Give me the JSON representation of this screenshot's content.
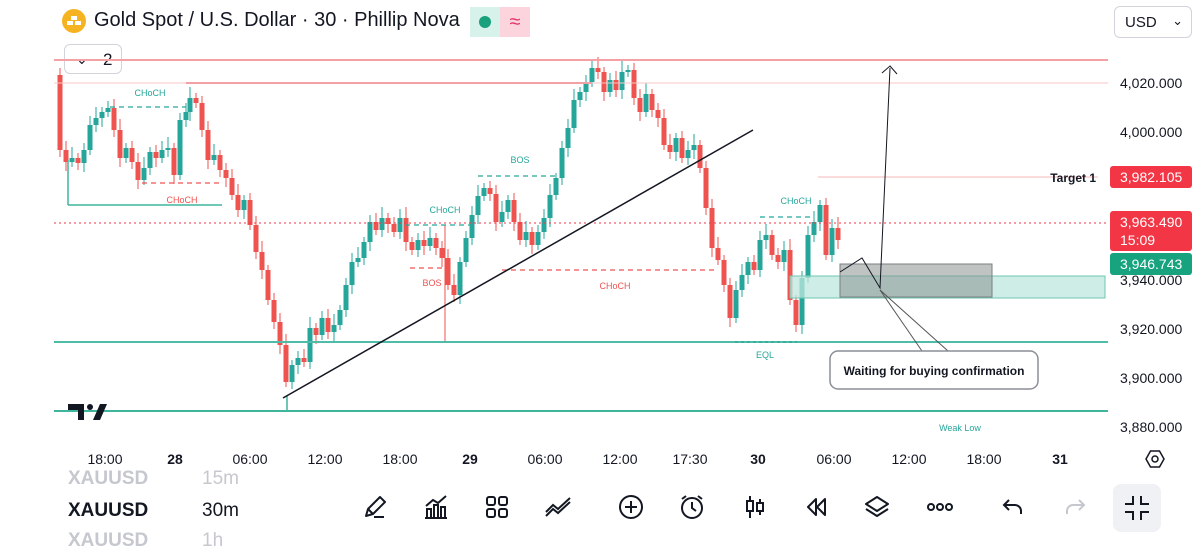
{
  "header": {
    "title": "Gold Spot / U.S. Dollar · 30 · Phillip Nova",
    "currency": "USD",
    "indicator_count": "2",
    "logo_icon": "gold-bars-icon",
    "live_icon": "live-dot-icon",
    "delay_icon": "approx-icon"
  },
  "price_axis": {
    "ticks": [
      "4,020.000",
      "4,000.000",
      "3,940.000",
      "3,920.000",
      "3,900.000",
      "3,880.000"
    ],
    "target_label": "Target 1",
    "target_value": "3,982.105",
    "last_price": "3,963.490",
    "countdown": "15:09",
    "level_value": "3,946.743"
  },
  "time_axis": {
    "ticks": [
      "18:00",
      "28",
      "06:00",
      "12:00",
      "18:00",
      "29",
      "06:00",
      "12:00",
      "17:30",
      "30",
      "06:00",
      "12:00",
      "18:00",
      "31"
    ],
    "settings_icon": "gear-icon"
  },
  "annotations": {
    "choch": "CHoCH",
    "bos": "BOS",
    "eql": "EQL",
    "weak_low": "Weak Low",
    "callout": "Waiting for buying confirmation"
  },
  "watermark_icon": "tradingview-logo",
  "colors": {
    "bull": "#26a69a",
    "bear": "#ef5350",
    "resistance": "#f3a1a4",
    "support": "#3fb59d",
    "accent_red": "#f23645"
  },
  "toolbar": {
    "timeframes": [
      {
        "symbol": "XAUUSD",
        "tf": "15m"
      },
      {
        "symbol": "XAUUSD",
        "tf": "30m"
      },
      {
        "symbol": "XAUUSD",
        "tf": "1h"
      }
    ],
    "tools": [
      "pencil-icon",
      "indicators-icon",
      "layouts-icon",
      "trend-line-icon",
      "add-icon",
      "alarm-icon",
      "candles-icon",
      "replay-icon",
      "layers-icon",
      "more-icon",
      "undo-icon",
      "redo-icon",
      "fullscreen-icon"
    ]
  }
}
